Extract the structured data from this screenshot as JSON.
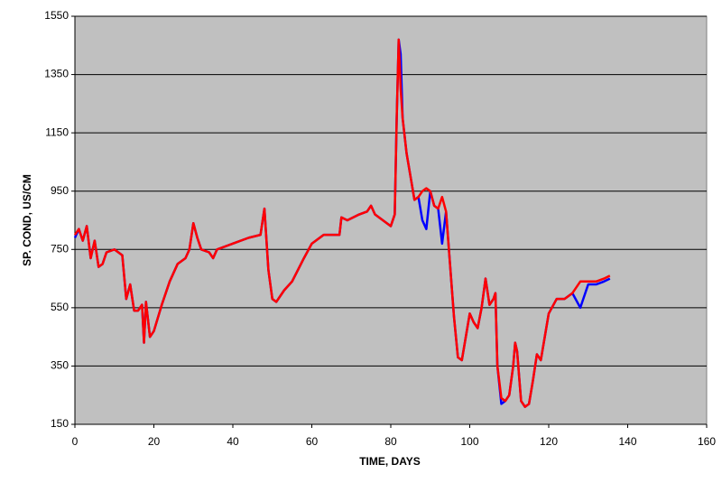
{
  "chart_data": {
    "type": "line",
    "xlabel": "TIME, DAYS",
    "ylabel": "SP. COND, US/CM",
    "x": [
      0,
      1,
      2,
      3,
      4,
      5,
      6,
      7,
      8,
      10,
      12,
      13,
      14,
      15,
      16,
      17,
      17.5,
      18,
      19,
      20,
      22,
      24,
      26,
      28,
      29,
      30,
      31,
      32,
      34,
      35,
      36,
      40,
      44,
      47,
      48,
      49,
      50,
      51,
      53,
      55,
      58,
      60,
      63,
      67,
      67.5,
      69,
      72,
      74,
      75,
      76,
      78,
      80,
      81,
      81.5,
      82,
      82.5,
      83,
      84,
      85,
      86,
      87,
      88,
      89,
      90,
      91,
      92,
      93,
      94,
      95,
      96,
      97,
      98,
      99,
      100,
      101,
      102,
      103,
      104,
      105,
      106,
      106.5,
      107,
      108,
      109,
      110,
      111,
      111.5,
      112,
      113,
      114,
      115,
      116,
      117,
      118,
      119,
      120,
      122,
      124,
      126,
      128,
      130,
      132,
      134,
      135.5
    ],
    "series": [
      {
        "color": "#0000ff",
        "values": [
          790,
          820,
          780,
          830,
          720,
          780,
          690,
          700,
          740,
          750,
          730,
          580,
          630,
          540,
          540,
          560,
          430,
          570,
          450,
          470,
          560,
          640,
          700,
          720,
          750,
          840,
          790,
          750,
          740,
          720,
          750,
          770,
          790,
          800,
          890,
          680,
          580,
          570,
          610,
          640,
          720,
          770,
          800,
          800,
          860,
          850,
          870,
          880,
          900,
          870,
          850,
          830,
          870,
          1200,
          1470,
          1420,
          1200,
          1080,
          1000,
          920,
          930,
          850,
          820,
          950,
          900,
          890,
          770,
          880,
          700,
          520,
          380,
          370,
          450,
          530,
          500,
          480,
          550,
          650,
          560,
          580,
          600,
          350,
          220,
          230,
          250,
          350,
          430,
          400,
          230,
          210,
          220,
          300,
          390,
          370,
          450,
          530,
          580,
          580,
          600,
          550,
          630,
          630,
          640,
          650
        ]
      },
      {
        "color": "#ff0000",
        "values": [
          800,
          820,
          780,
          830,
          720,
          780,
          690,
          700,
          740,
          750,
          730,
          580,
          630,
          540,
          540,
          560,
          430,
          570,
          450,
          470,
          560,
          640,
          700,
          720,
          750,
          840,
          790,
          750,
          740,
          720,
          750,
          770,
          790,
          800,
          890,
          680,
          580,
          570,
          610,
          640,
          720,
          770,
          800,
          800,
          860,
          850,
          870,
          880,
          900,
          870,
          850,
          830,
          870,
          1200,
          1470,
          1300,
          1200,
          1080,
          1000,
          920,
          930,
          950,
          960,
          950,
          900,
          890,
          930,
          880,
          700,
          520,
          380,
          370,
          450,
          530,
          500,
          480,
          550,
          650,
          560,
          580,
          600,
          350,
          240,
          230,
          250,
          350,
          430,
          400,
          230,
          210,
          220,
          300,
          390,
          370,
          450,
          530,
          580,
          580,
          600,
          640,
          640,
          640,
          650,
          660
        ]
      }
    ],
    "xlim": [
      0,
      160
    ],
    "xticks": [
      0,
      20,
      40,
      60,
      80,
      100,
      120,
      140,
      160
    ],
    "ylim": [
      150,
      1550
    ],
    "yticks": [
      150,
      350,
      550,
      750,
      950,
      1150,
      1350,
      1550
    ],
    "grid": true,
    "plot_background": "#c0c0c0"
  }
}
